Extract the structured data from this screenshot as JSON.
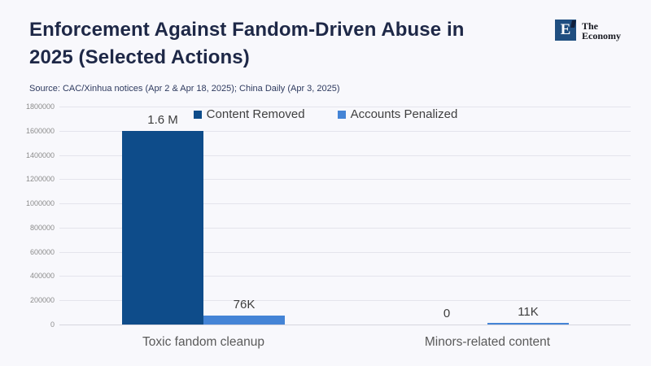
{
  "page": {
    "background": "#f8f8fc"
  },
  "header": {
    "title_line1": "Enforcement Against Fandom-Driven Abuse in",
    "title_line2": "2025 (Selected Actions)",
    "source": "Source: CAC/Xinhua notices (Apr 2 & Apr 18, 2025); China Daily (Apr 3, 2025)"
  },
  "logo": {
    "letter": "E",
    "name_line1": "The",
    "name_line2": "Economy",
    "square_color": "#1f4e80",
    "notch_color": "#101f3c"
  },
  "chart_data": {
    "type": "bar",
    "title": "Enforcement Against Fandom-Driven Abuse in 2025 (Selected Actions)",
    "source": "Source: CAC/Xinhua notices (Apr 2 & Apr 18, 2025); China Daily (Apr 3, 2025)",
    "categories": [
      "Toxic fandom cleanup",
      "Minors-related content"
    ],
    "series": [
      {
        "name": "Content Removed",
        "color": "#0e4c8a",
        "values": [
          1600000,
          0
        ],
        "value_labels": [
          "1.6 M",
          "0"
        ]
      },
      {
        "name": "Accounts Penalized",
        "color": "#4484d6",
        "values": [
          76000,
          11000
        ],
        "value_labels": [
          "76K",
          "11K"
        ]
      }
    ],
    "ylim": [
      0,
      1800000
    ],
    "yticks": [
      0,
      200000,
      400000,
      600000,
      800000,
      1000000,
      1200000,
      1400000,
      1600000,
      1800000
    ],
    "grid": true,
    "legend_position": "top"
  },
  "colors": {
    "title": "#1e2847",
    "source": "#2e3a5f",
    "axis_tick": "#8c8c8c",
    "value_label": "#3d3d3d",
    "category_label": "#5a5a5a",
    "legend_text": "#404040",
    "gridline": "#e4e4ec",
    "baseline": "#d6d6de"
  }
}
